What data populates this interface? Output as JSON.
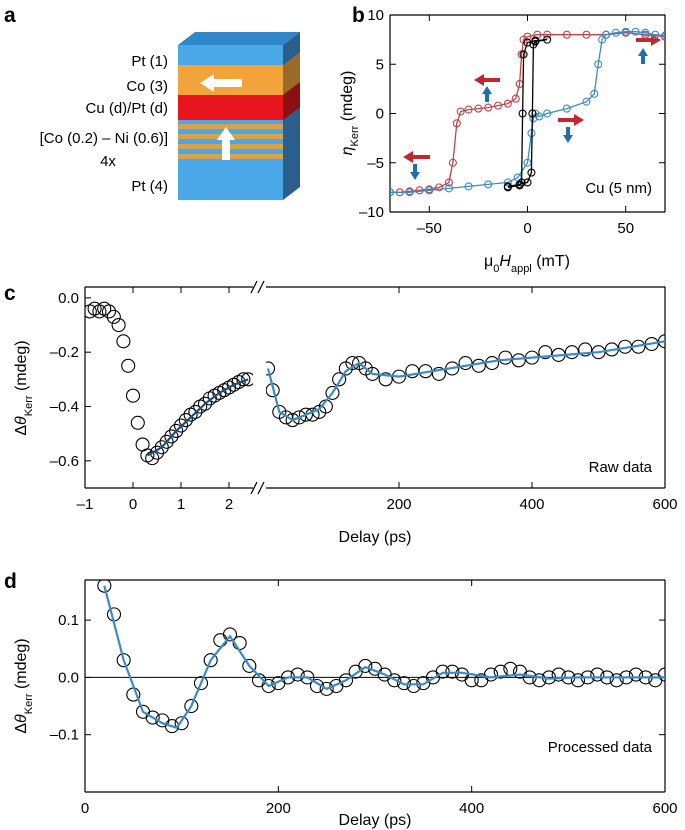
{
  "panel_a": {
    "letter": "a",
    "layers": [
      "Pt (1)",
      "Co (3)",
      "Cu (d)/Pt (d)",
      "[Co (0.2) – Ni (0.6)]",
      "4x",
      "Pt (4)"
    ]
  },
  "chart_data": [
    {
      "type": "line",
      "panel_label": "b",
      "annotation": "Cu (5 nm)",
      "xlabel": [
        {
          "text": "μ"
        },
        {
          "text": "0",
          "sub": true
        },
        {
          "text": "H",
          "italic": true
        },
        {
          "text": "appl",
          "sub": true
        },
        {
          "text": " (mT)"
        }
      ],
      "ylabel": [
        {
          "text": "η",
          "italic": true
        },
        {
          "text": "Kerr",
          "sub": true
        },
        {
          "text": " (mdeg)"
        }
      ],
      "xlim": [
        -70,
        70
      ],
      "ylim": [
        -10,
        10
      ],
      "xticks": [
        {
          "value": -50,
          "label": "–50"
        },
        0,
        50
      ],
      "yticks": [
        {
          "value": -10,
          "label": "–10"
        },
        {
          "value": -5,
          "label": "–5"
        },
        0,
        5,
        10
      ],
      "series": [
        {
          "color": "#c0444a",
          "style": "line+markers",
          "x": [
            -70,
            -65,
            -60,
            -55,
            -50,
            -45,
            -40,
            -38,
            -36,
            -34,
            -30,
            -25,
            -20,
            -15,
            -10,
            -6,
            -4,
            -3,
            -2,
            0,
            5,
            10,
            20,
            30,
            40,
            50,
            60,
            70
          ],
          "values": [
            -8,
            -8,
            -7.9,
            -7.8,
            -7.7,
            -7.5,
            -7,
            -5,
            -1,
            0.2,
            0.4,
            0.5,
            0.6,
            0.8,
            1,
            1.5,
            3,
            6,
            7.5,
            7.8,
            8,
            8,
            8,
            8,
            8,
            8.2,
            8,
            7.8
          ]
        },
        {
          "color": "#3a8cc7",
          "style": "line+markers",
          "x": [
            -70,
            -60,
            -50,
            -40,
            -30,
            -20,
            -10,
            -5,
            0,
            2,
            3,
            4,
            6,
            10,
            20,
            30,
            34,
            36,
            38,
            40,
            45,
            50,
            55,
            60,
            65,
            70
          ],
          "values": [
            -8,
            -8,
            -7.8,
            -7.6,
            -7.4,
            -7.2,
            -7,
            -6.5,
            -5,
            -2,
            -0.5,
            0,
            -0.3,
            0,
            0.5,
            1.2,
            2,
            5,
            7.5,
            8,
            8.2,
            8.3,
            8.3,
            8.2,
            8,
            7.9
          ]
        },
        {
          "color": "#000000",
          "style": "line+markers",
          "x": [
            -10,
            -4,
            0,
            2,
            2.5,
            3,
            4,
            10,
            4,
            0,
            -2,
            -2.5,
            -3,
            -4,
            -10
          ],
          "values": [
            -7.4,
            -7.2,
            -7,
            -6,
            0,
            7,
            7.3,
            7.5,
            7.4,
            7.2,
            6,
            0,
            -7,
            -7.3,
            -7.5
          ]
        }
      ]
    },
    {
      "type": "line",
      "panel_label": "c",
      "ylabel": [
        {
          "text": "Δ"
        },
        {
          "text": "θ",
          "italic": true
        },
        {
          "text": "Kerr",
          "sub": true
        },
        {
          "text": " (mdeg)"
        }
      ],
      "xlim": [
        -1,
        2.5
      ],
      "ylim": [
        -0.7,
        0.04
      ],
      "xticks": [
        {
          "value": -1,
          "label": "–1"
        },
        0,
        1,
        2
      ],
      "yticks": [
        {
          "value": 0,
          "label": "0.0"
        },
        {
          "value": -0.2,
          "label": "–0.2"
        },
        {
          "value": -0.4,
          "label": "–0.4"
        },
        {
          "value": -0.6,
          "label": "–0.6"
        }
      ],
      "series": [
        {
          "color": "#000000",
          "style": "markers",
          "x": [
            -0.9,
            -0.8,
            -0.7,
            -0.6,
            -0.5,
            -0.4,
            -0.3,
            -0.2,
            -0.1,
            0,
            0.1,
            0.2,
            0.3,
            0.4,
            0.5,
            0.6,
            0.7,
            0.8,
            0.9,
            1.0,
            1.1,
            1.2,
            1.3,
            1.4,
            1.5,
            1.6,
            1.7,
            1.8,
            1.9,
            2.0,
            2.1,
            2.2,
            2.3,
            2.4
          ],
          "values": [
            -0.05,
            -0.04,
            -0.05,
            -0.04,
            -0.05,
            -0.07,
            -0.1,
            -0.16,
            -0.25,
            -0.36,
            -0.46,
            -0.54,
            -0.58,
            -0.59,
            -0.57,
            -0.55,
            -0.53,
            -0.51,
            -0.49,
            -0.47,
            -0.45,
            -0.43,
            -0.42,
            -0.4,
            -0.39,
            -0.37,
            -0.36,
            -0.35,
            -0.34,
            -0.33,
            -0.32,
            -0.31,
            -0.3,
            -0.3
          ]
        },
        {
          "color": "#1d4e7e",
          "style": "line",
          "x": [
            0.3,
            0.6,
            0.9,
            1.2,
            1.5,
            1.8,
            2.1,
            2.4
          ],
          "values": [
            -0.58,
            -0.55,
            -0.49,
            -0.44,
            -0.39,
            -0.35,
            -0.32,
            -0.3
          ]
        }
      ]
    },
    {
      "type": "line",
      "annotation": "Raw data",
      "xlabel": "Delay (ps)",
      "xlim": [
        0,
        600
      ],
      "ylim": [
        -0.7,
        0.04
      ],
      "xticks": [
        200,
        400,
        600
      ],
      "series": [
        {
          "color": "#000000",
          "style": "markers",
          "x": [
            3,
            10,
            20,
            30,
            40,
            50,
            60,
            70,
            80,
            90,
            100,
            110,
            120,
            130,
            140,
            150,
            160,
            180,
            200,
            220,
            240,
            260,
            280,
            300,
            320,
            340,
            360,
            380,
            400,
            420,
            440,
            460,
            480,
            500,
            520,
            540,
            560,
            580,
            600
          ],
          "values": [
            -0.26,
            -0.34,
            -0.42,
            -0.44,
            -0.45,
            -0.44,
            -0.43,
            -0.43,
            -0.42,
            -0.4,
            -0.35,
            -0.3,
            -0.26,
            -0.24,
            -0.24,
            -0.26,
            -0.28,
            -0.3,
            -0.29,
            -0.27,
            -0.27,
            -0.28,
            -0.26,
            -0.24,
            -0.25,
            -0.24,
            -0.22,
            -0.23,
            -0.22,
            -0.2,
            -0.21,
            -0.2,
            -0.19,
            -0.2,
            -0.19,
            -0.18,
            -0.18,
            -0.17,
            -0.16
          ]
        },
        {
          "color": "#3a8cc7",
          "style": "line",
          "x": [
            3,
            20,
            40,
            60,
            80,
            100,
            120,
            140,
            160,
            200,
            250,
            300,
            350,
            400,
            450,
            500,
            550,
            600
          ],
          "values": [
            -0.26,
            -0.42,
            -0.45,
            -0.43,
            -0.41,
            -0.35,
            -0.27,
            -0.24,
            -0.28,
            -0.29,
            -0.27,
            -0.25,
            -0.23,
            -0.22,
            -0.21,
            -0.2,
            -0.18,
            -0.16
          ]
        }
      ]
    },
    {
      "type": "line",
      "panel_label": "d",
      "annotation": "Processed data",
      "xlabel": "Delay (ps)",
      "ylabel": [
        {
          "text": "Δ"
        },
        {
          "text": "θ",
          "italic": true
        },
        {
          "text": "Kerr",
          "sub": true
        },
        {
          "text": " (mdeg)"
        }
      ],
      "xlim": [
        0,
        600
      ],
      "ylim": [
        -0.2,
        0.17
      ],
      "zero_line": true,
      "xticks": [
        0,
        200,
        400,
        600
      ],
      "yticks": [
        0.1,
        {
          "value": 0,
          "label": "0.0"
        },
        {
          "value": -0.1,
          "label": "–0.1"
        }
      ],
      "series": [
        {
          "color": "#000000",
          "style": "markers",
          "x": [
            20,
            30,
            40,
            50,
            60,
            70,
            80,
            90,
            100,
            110,
            120,
            130,
            140,
            150,
            160,
            170,
            180,
            190,
            200,
            210,
            220,
            230,
            240,
            250,
            260,
            270,
            280,
            290,
            300,
            310,
            320,
            330,
            340,
            350,
            360,
            370,
            380,
            390,
            400,
            410,
            420,
            430,
            440,
            450,
            460,
            470,
            480,
            490,
            500,
            510,
            520,
            530,
            540,
            550,
            560,
            570,
            580,
            590,
            600
          ],
          "values": [
            0.16,
            0.11,
            0.03,
            -0.03,
            -0.06,
            -0.07,
            -0.075,
            -0.085,
            -0.08,
            -0.05,
            -0.01,
            0.03,
            0.065,
            0.075,
            0.06,
            0.02,
            -0.005,
            -0.015,
            -0.01,
            0,
            0.005,
            0,
            -0.015,
            -0.02,
            -0.015,
            -0.005,
            0.01,
            0.02,
            0.015,
            0.005,
            -0.005,
            -0.01,
            -0.015,
            -0.01,
            0,
            0.01,
            0.01,
            0.005,
            -0.005,
            -0.005,
            0.005,
            0.01,
            0.015,
            0.01,
            0,
            -0.005,
            0,
            0.005,
            0,
            -0.005,
            0,
            0.005,
            0,
            -0.005,
            0,
            0.005,
            0,
            -0.005,
            0.005
          ]
        },
        {
          "color": "#3a8cc7",
          "style": "line",
          "x": [
            20,
            40,
            60,
            80,
            95,
            110,
            130,
            150,
            170,
            190,
            210,
            230,
            250,
            270,
            290,
            310,
            330,
            350,
            370,
            390,
            420,
            450,
            480,
            510,
            540,
            570,
            600
          ],
          "values": [
            0.16,
            0.03,
            -0.06,
            -0.08,
            -0.088,
            -0.05,
            0.03,
            0.072,
            0.02,
            -0.015,
            0,
            0,
            -0.02,
            -0.005,
            0.018,
            0.005,
            -0.012,
            -0.012,
            0.008,
            0.008,
            0,
            0.005,
            -0.002,
            0,
            0,
            0,
            0
          ]
        }
      ]
    }
  ]
}
